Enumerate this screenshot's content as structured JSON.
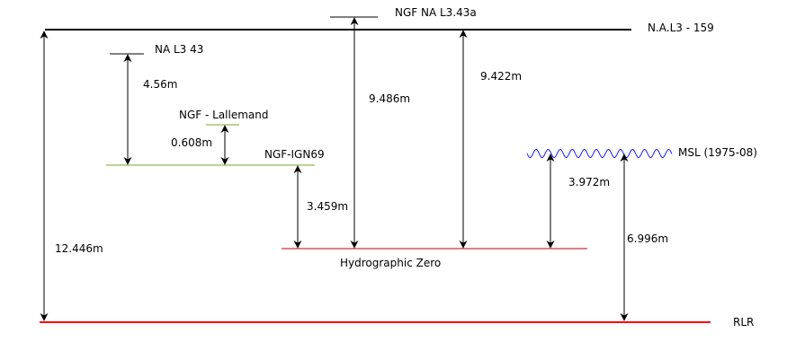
{
  "levels": {
    "nal3_159": {
      "label": "N.A.L3 - 159",
      "color": "#000000"
    },
    "ngf_na_l343a": {
      "label": "NGF NA L3.43a",
      "color": "#000000"
    },
    "na_l343": {
      "label": "NA L3 43",
      "color": "#000000"
    },
    "ngf_lallemand": {
      "label": "NGF - Lallemand",
      "color": "#7aa62a"
    },
    "ngf_ign69": {
      "label": "NGF-IGN69",
      "color": "#7aa62a"
    },
    "msl": {
      "label": "MSL (1975-08)",
      "color": "#1a1aff"
    },
    "hydrographic_zero": {
      "label": "Hydrographic Zero",
      "color": "#c00000"
    },
    "rlr": {
      "label": "RLR",
      "color": "#ff0000"
    }
  },
  "measurements": {
    "rlr_to_nal3": "12.446m",
    "na_l343_to_ign69": "4.56m",
    "lallemand_to_ign69": "0.608m",
    "ign69_to_hydro": "3.459m",
    "ngf_na_l343a_to_hydro": "9.486m",
    "nal3_to_hydro": "9.422m",
    "msl_to_hydro": "3.972m",
    "msl_to_rlr": "6.996m"
  }
}
